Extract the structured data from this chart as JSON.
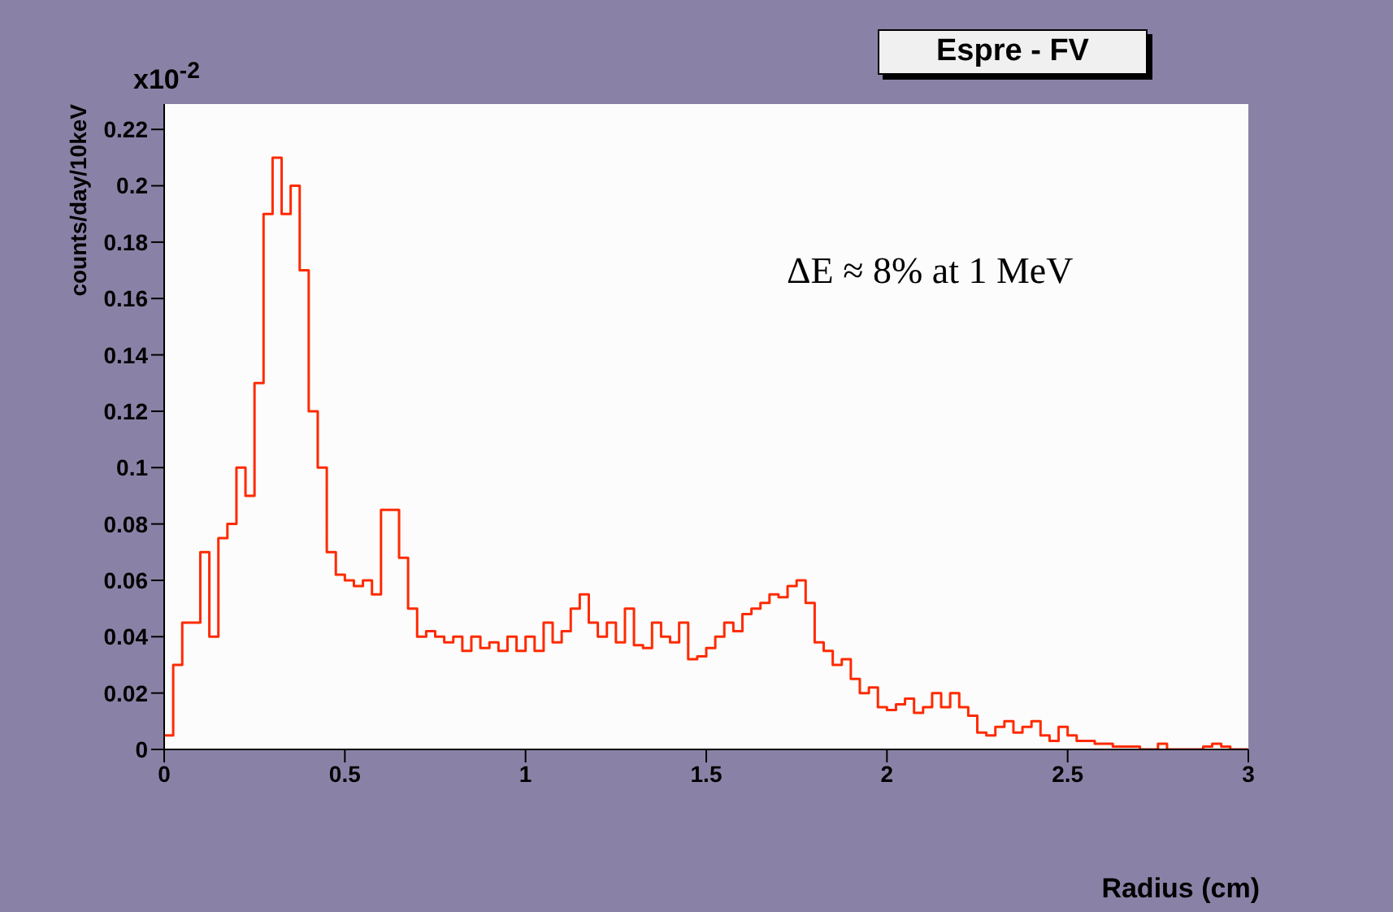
{
  "chart_data": {
    "type": "histogram",
    "title": "Espre - FV",
    "xlabel": "Radius (cm)",
    "ylabel": "counts/day/10keV",
    "annotations": [
      "x10$^{-2}$",
      "ΔE ≈ 8% at 1 MeV"
    ],
    "color": "#ff2a00",
    "bins": [
      0,
      0.025,
      0.05,
      0.075,
      0.1,
      0.125,
      0.15,
      0.175,
      0.2,
      0.225,
      0.25,
      0.275,
      0.3,
      0.325,
      0.35,
      0.375,
      0.4,
      0.425,
      0.45,
      0.475,
      0.5,
      0.525,
      0.55,
      0.575,
      0.6,
      0.625,
      0.65,
      0.675,
      0.7,
      0.725,
      0.75,
      0.775,
      0.8,
      0.825,
      0.85,
      0.875,
      0.9,
      0.925,
      0.95,
      0.975,
      1,
      1.025,
      1.05,
      1.075,
      1.1,
      1.125,
      1.15,
      1.175,
      1.2,
      1.225,
      1.25,
      1.275,
      1.3,
      1.325,
      1.35,
      1.375,
      1.4,
      1.425,
      1.45,
      1.475,
      1.5,
      1.525,
      1.55,
      1.575,
      1.6,
      1.625,
      1.65,
      1.675,
      1.7,
      1.725,
      1.75,
      1.775,
      1.8,
      1.825,
      1.85,
      1.875,
      1.9,
      1.925,
      1.95,
      1.975,
      2,
      2.025,
      2.05,
      2.075,
      2.1,
      2.125,
      2.15,
      2.175,
      2.2,
      2.225,
      2.25,
      2.275,
      2.3,
      2.325,
      2.35,
      2.375,
      2.4,
      2.425,
      2.45,
      2.475,
      2.5,
      2.525,
      2.55,
      2.575,
      2.6,
      2.625,
      2.65,
      2.675,
      2.7,
      2.725,
      2.75,
      2.775,
      2.8,
      2.825,
      2.85,
      2.875,
      2.9,
      2.925,
      2.95,
      2.975,
      3
    ],
    "values": [
      0.005,
      0.03,
      0.045,
      0.045,
      0.07,
      0.04,
      0.075,
      0.08,
      0.1,
      0.09,
      0.13,
      0.19,
      0.21,
      0.19,
      0.2,
      0.17,
      0.12,
      0.1,
      0.07,
      0.062,
      0.06,
      0.058,
      0.06,
      0.055,
      0.085,
      0.085,
      0.068,
      0.05,
      0.04,
      0.042,
      0.04,
      0.038,
      0.04,
      0.035,
      0.04,
      0.036,
      0.038,
      0.035,
      0.04,
      0.035,
      0.04,
      0.035,
      0.045,
      0.038,
      0.042,
      0.05,
      0.055,
      0.045,
      0.04,
      0.045,
      0.038,
      0.05,
      0.037,
      0.036,
      0.045,
      0.04,
      0.038,
      0.045,
      0.032,
      0.033,
      0.036,
      0.04,
      0.045,
      0.042,
      0.048,
      0.05,
      0.052,
      0.055,
      0.054,
      0.058,
      0.06,
      0.052,
      0.038,
      0.035,
      0.03,
      0.032,
      0.025,
      0.02,
      0.022,
      0.015,
      0.014,
      0.016,
      0.018,
      0.013,
      0.015,
      0.02,
      0.015,
      0.02,
      0.015,
      0.012,
      0.006,
      0.005,
      0.008,
      0.01,
      0.006,
      0.008,
      0.01,
      0.005,
      0.003,
      0.008,
      0.005,
      0.003,
      0.003,
      0.002,
      0.002,
      0.001,
      0.001,
      0.001,
      0,
      0,
      0.002,
      0,
      0,
      0,
      0,
      0.001,
      0.002,
      0.001,
      0,
      0
    ],
    "xlim": [
      0,
      3
    ],
    "xticks": [
      0,
      0.5,
      1,
      1.5,
      2,
      2.5,
      3
    ],
    "ylim": [
      0,
      0.229
    ],
    "yticks": [
      0,
      0.02,
      0.04,
      0.06,
      0.08,
      0.1,
      0.12,
      0.14,
      0.16,
      0.18,
      0.2,
      0.22
    ],
    "grid": false
  }
}
